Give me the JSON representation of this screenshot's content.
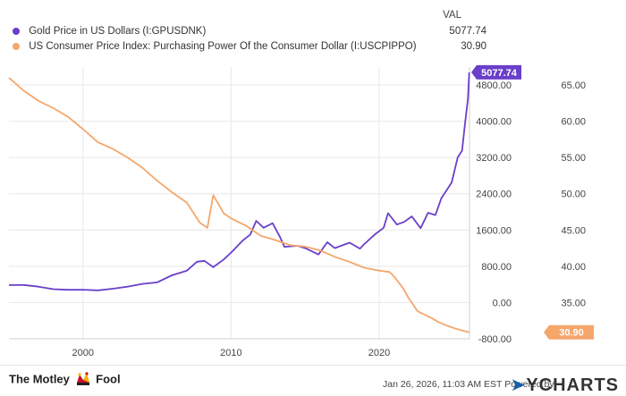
{
  "header": {
    "value_column_label": "VAL"
  },
  "legend": [
    {
      "name": "Gold Price in US Dollars (I:GPUSDNK)",
      "value": "5077.74",
      "color": "#6a3fc9"
    },
    {
      "name": "US Consumer Price Index: Purchasing Power Of the Consumer Dollar (I:USCPIPPO)",
      "value": "30.90",
      "color": "#f5a66b"
    }
  ],
  "chart_data": {
    "type": "line",
    "x_ticks": [
      "2000",
      "2010",
      "2020"
    ],
    "xlim": [
      1995.0,
      2026.1
    ],
    "left_axis": {
      "ticks": [
        "4800.00",
        "4000.00",
        "3200.00",
        "2400.00",
        "1600.00",
        "800.00",
        "0.00",
        "-800.00"
      ],
      "ylim": [
        -800,
        4800
      ]
    },
    "right_axis": {
      "ticks": [
        "65.00",
        "60.00",
        "55.00",
        "50.00",
        "45.00",
        "40.00",
        "35.00"
      ],
      "ylim": [
        30,
        65
      ]
    },
    "grid": true,
    "series": [
      {
        "name": "Gold Price in US Dollars (I:GPUSDNK)",
        "axis": "left",
        "color": "#6a3fc9",
        "end_label": "5077.74",
        "points": [
          [
            1995.0,
            385
          ],
          [
            1996.0,
            388
          ],
          [
            1997.0,
            350
          ],
          [
            1998.0,
            295
          ],
          [
            1999.0,
            280
          ],
          [
            2000.0,
            282
          ],
          [
            2001.0,
            268
          ],
          [
            2002.0,
            305
          ],
          [
            2003.0,
            350
          ],
          [
            2004.0,
            410
          ],
          [
            2005.0,
            445
          ],
          [
            2006.0,
            600
          ],
          [
            2007.0,
            700
          ],
          [
            2007.7,
            900
          ],
          [
            2008.2,
            920
          ],
          [
            2008.8,
            780
          ],
          [
            2009.5,
            950
          ],
          [
            2010.0,
            1100
          ],
          [
            2010.8,
            1370
          ],
          [
            2011.3,
            1500
          ],
          [
            2011.7,
            1800
          ],
          [
            2012.2,
            1650
          ],
          [
            2012.8,
            1750
          ],
          [
            2013.3,
            1450
          ],
          [
            2013.6,
            1230
          ],
          [
            2014.5,
            1250
          ],
          [
            2015.0,
            1200
          ],
          [
            2015.9,
            1060
          ],
          [
            2016.5,
            1330
          ],
          [
            2017.0,
            1200
          ],
          [
            2017.5,
            1260
          ],
          [
            2018.0,
            1320
          ],
          [
            2018.7,
            1190
          ],
          [
            2019.0,
            1290
          ],
          [
            2019.7,
            1500
          ],
          [
            2020.3,
            1650
          ],
          [
            2020.6,
            1970
          ],
          [
            2021.2,
            1720
          ],
          [
            2021.7,
            1780
          ],
          [
            2022.2,
            1900
          ],
          [
            2022.8,
            1640
          ],
          [
            2023.3,
            1980
          ],
          [
            2023.8,
            1930
          ],
          [
            2024.2,
            2300
          ],
          [
            2024.6,
            2500
          ],
          [
            2024.9,
            2650
          ],
          [
            2025.3,
            3200
          ],
          [
            2025.6,
            3350
          ],
          [
            2025.8,
            3950
          ],
          [
            2026.0,
            4500
          ],
          [
            2026.08,
            5077.74
          ]
        ]
      },
      {
        "name": "US Consumer Price Index: Purchasing Power Of the Consumer Dollar (I:USCPIPPO)",
        "axis": "right",
        "color": "#f5a66b",
        "end_label": "30.90",
        "points": [
          [
            1995.0,
            66.0
          ],
          [
            1996.0,
            64.2
          ],
          [
            1997.0,
            62.8
          ],
          [
            1998.0,
            61.8
          ],
          [
            1999.0,
            60.6
          ],
          [
            2000.0,
            58.9
          ],
          [
            2001.0,
            57.1
          ],
          [
            2002.0,
            56.2
          ],
          [
            2003.0,
            55.0
          ],
          [
            2004.0,
            53.6
          ],
          [
            2005.0,
            51.8
          ],
          [
            2006.0,
            50.2
          ],
          [
            2007.0,
            48.8
          ],
          [
            2007.9,
            46.0
          ],
          [
            2008.4,
            45.3
          ],
          [
            2008.8,
            49.8
          ],
          [
            2009.5,
            47.3
          ],
          [
            2010.0,
            46.6
          ],
          [
            2011.0,
            45.6
          ],
          [
            2012.0,
            44.2
          ],
          [
            2013.0,
            43.6
          ],
          [
            2014.0,
            42.9
          ],
          [
            2015.0,
            42.7
          ],
          [
            2016.0,
            42.2
          ],
          [
            2017.0,
            41.3
          ],
          [
            2018.0,
            40.6
          ],
          [
            2019.0,
            39.8
          ],
          [
            2020.0,
            39.4
          ],
          [
            2020.7,
            39.2
          ],
          [
            2021.0,
            38.6
          ],
          [
            2021.6,
            37.0
          ],
          [
            2022.0,
            35.6
          ],
          [
            2022.6,
            33.8
          ],
          [
            2023.0,
            33.4
          ],
          [
            2023.6,
            32.8
          ],
          [
            2024.0,
            32.3
          ],
          [
            2024.6,
            31.8
          ],
          [
            2025.0,
            31.5
          ],
          [
            2025.5,
            31.2
          ],
          [
            2026.08,
            30.9
          ]
        ]
      }
    ]
  },
  "footer": {
    "brand_left": "The Motley",
    "brand_right": "Fool",
    "timestamp": "Jan 26, 2026, 11:03 AM EST Powered by",
    "powered_brand": "YCHARTS"
  }
}
